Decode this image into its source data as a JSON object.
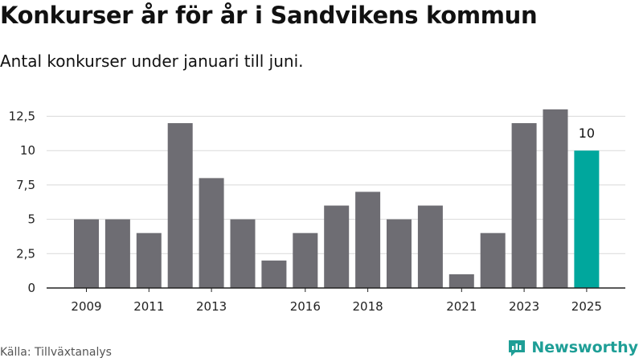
{
  "title": "Konkurser år för år i Sandvikens kommun",
  "subtitle": "Antal konkurser under januari till juni.",
  "source": "Källa: Tillväxtanalys",
  "brand": {
    "name": "Newsworthy",
    "color": "#1e9e96",
    "icon": "newsworthy-logo-icon"
  },
  "colors": {
    "bar": "#6e6d73",
    "highlight": "#00a79d",
    "grid": "#d9d9d9",
    "axis": "#222222"
  },
  "chart_data": {
    "type": "bar",
    "x": [
      2009,
      2010,
      2011,
      2012,
      2013,
      2014,
      2015,
      2016,
      2017,
      2018,
      2019,
      2020,
      2021,
      2022,
      2023,
      2024,
      2025
    ],
    "values": [
      5,
      5,
      4,
      12,
      8,
      5,
      2,
      4,
      6,
      7,
      5,
      6,
      1,
      4,
      12,
      13,
      10
    ],
    "x_tick_labels": [
      "2009",
      "2011",
      "2013",
      "2016",
      "2018",
      "2021",
      "2023",
      "2025"
    ],
    "y_ticks": [
      0,
      2.5,
      5,
      7.5,
      10,
      12.5
    ],
    "y_tick_labels": [
      "0",
      "2,5",
      "5",
      "7,5",
      "10",
      "12,5"
    ],
    "ylim": [
      0,
      13
    ],
    "highlight": {
      "x": 2025,
      "label": "10"
    },
    "grid": true,
    "xlabel": "",
    "ylabel": ""
  }
}
